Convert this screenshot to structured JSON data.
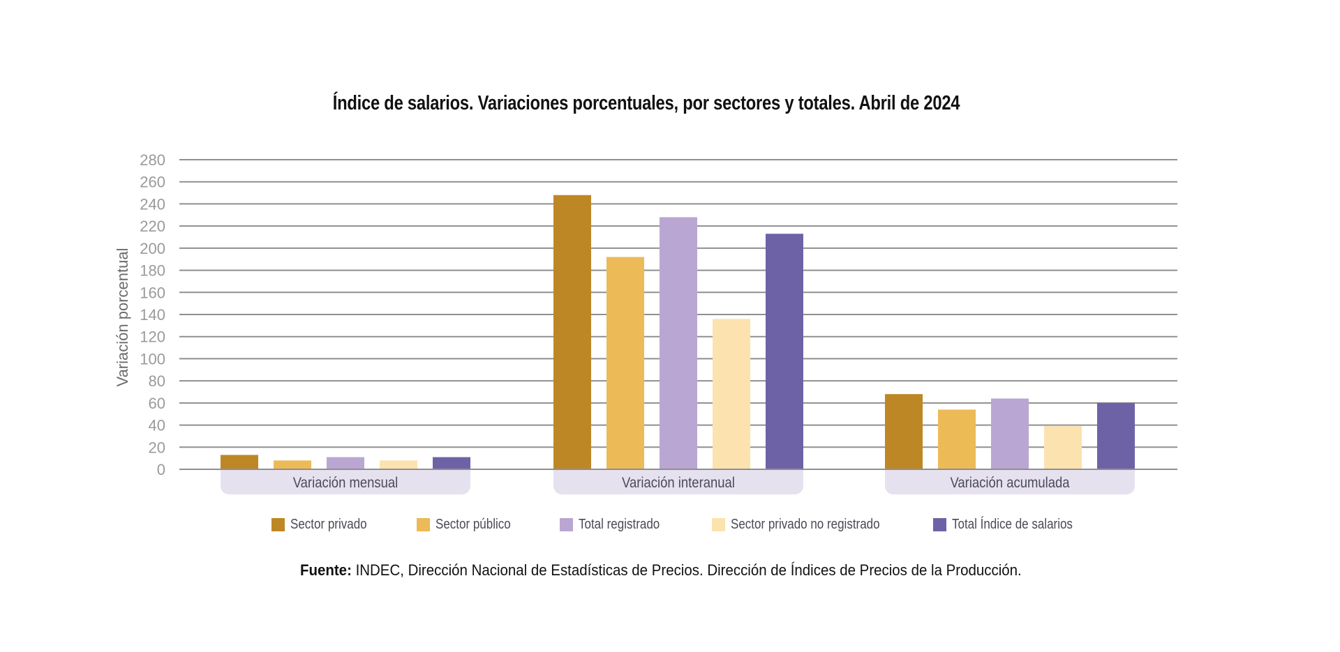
{
  "chart_data": {
    "type": "bar",
    "title": "Índice de salarios. Variaciones porcentuales, por sectores y totales. Abril de 2024",
    "xlabel": "",
    "ylabel": "Variación porcentual",
    "ylim": [
      0,
      280
    ],
    "yticks": [
      0,
      20,
      40,
      60,
      80,
      100,
      120,
      140,
      160,
      180,
      200,
      220,
      240,
      260,
      280
    ],
    "grid": true,
    "legend_position": "bottom",
    "categories": [
      "Variación mensual",
      "Variación interanual",
      "Variación acumulada"
    ],
    "series": [
      {
        "name": "Sector privado",
        "color": "#BE8725",
        "values": [
          13,
          248,
          68
        ]
      },
      {
        "name": "Sector público",
        "color": "#ECBA57",
        "values": [
          8,
          192,
          54
        ]
      },
      {
        "name": "Total registrado",
        "color": "#BAA6D2",
        "values": [
          11,
          228,
          64
        ]
      },
      {
        "name": "Sector privado no registrado",
        "color": "#FCE2AE",
        "values": [
          8,
          136,
          39
        ]
      },
      {
        "name": "Total Índice de salarios",
        "color": "#6E62A7",
        "values": [
          11,
          213,
          60
        ]
      }
    ],
    "category_box_color": "#E6E1EF",
    "grid_color": "#8f8f8f"
  },
  "source": {
    "label": "Fuente:",
    "text": " INDEC, Dirección Nacional de Estadísticas de Precios. Dirección de Índices de Precios de la Producción."
  }
}
